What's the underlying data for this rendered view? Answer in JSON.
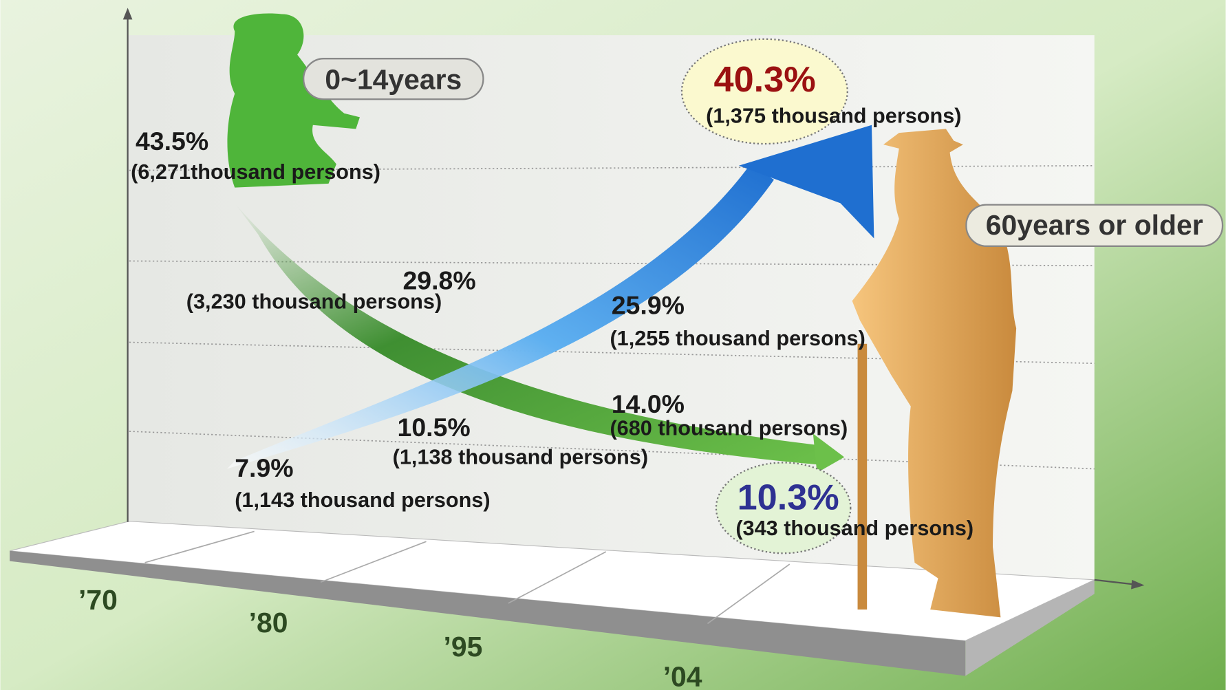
{
  "legend": {
    "young": "0~14years",
    "old": "60years or older"
  },
  "years": [
    "’70",
    "’80",
    "’95",
    "’04"
  ],
  "young": [
    {
      "percent": "43.5%",
      "count": "(6,271thousand persons)"
    },
    {
      "percent": "29.8%",
      "count": "(3,230 thousand persons)"
    },
    {
      "percent": "14.0%",
      "count": "(680 thousand persons)"
    },
    {
      "percent": "10.3%",
      "count": "(343 thousand persons)"
    }
  ],
  "old": [
    {
      "percent": "7.9%",
      "count": "(1,143 thousand persons)"
    },
    {
      "percent": "10.5%",
      "count": "(1,138 thousand persons)"
    },
    {
      "percent": "25.9%",
      "count": "(1,255 thousand persons)"
    },
    {
      "percent": "40.3%",
      "count": "(1,375 thousand persons)"
    }
  ]
}
